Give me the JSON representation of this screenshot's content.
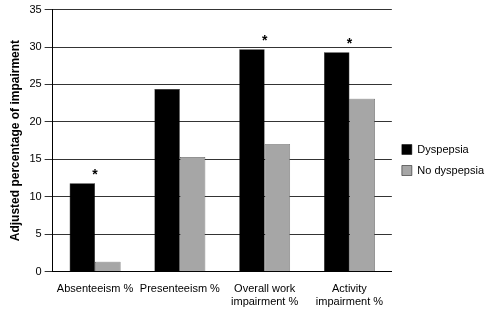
{
  "chart_data": {
    "type": "bar",
    "y_label": "Adjusted percentage of impairment",
    "categories": [
      "Absenteeism %",
      "Presenteeism %",
      "Overall work impairment %",
      "Activity impairment %"
    ],
    "series": [
      {
        "name": "Dyspepsia",
        "color": "#000000",
        "values": [
          11.8,
          24.4,
          29.7,
          29.3
        ]
      },
      {
        "name": "No dyspepsia",
        "color": "#a6a6a6",
        "values": [
          1.3,
          15.3,
          17.0,
          23.1
        ]
      }
    ],
    "ylim": [
      0,
      35
    ],
    "yticks": [
      0,
      5,
      10,
      15,
      20,
      25,
      30,
      35
    ],
    "grid": true,
    "legend": "right",
    "annotations": [
      {
        "category": "Absenteeism %",
        "text": "*"
      },
      {
        "category": "Overall work impairment %",
        "text": "*"
      },
      {
        "category": "Activity impairment %",
        "text": "*"
      }
    ]
  }
}
